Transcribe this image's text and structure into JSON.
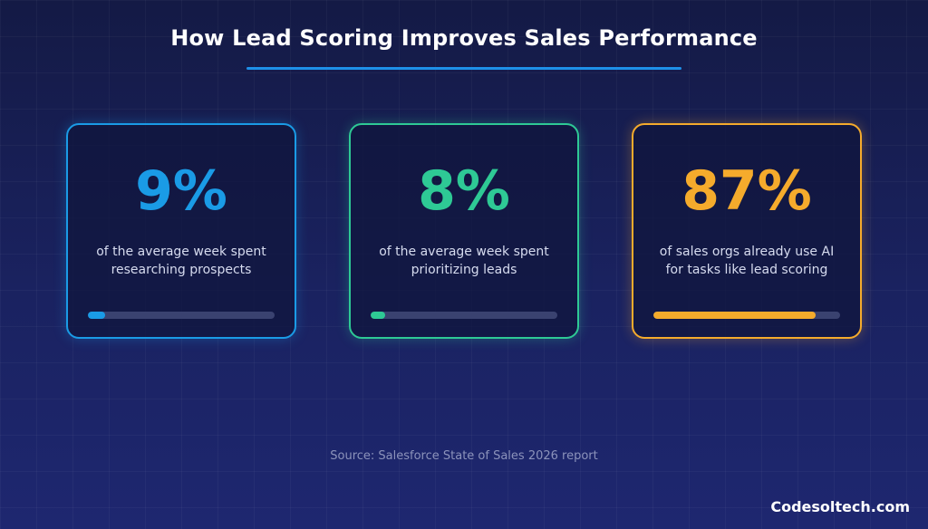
{
  "title": "How Lead Scoring Improves Sales Performance",
  "accent_color": "#1e90e8",
  "chart_data": {
    "type": "bar",
    "title": "How Lead Scoring Improves Sales Performance",
    "unit": "%",
    "ylim": [
      0,
      100
    ],
    "stats": [
      {
        "value": 9,
        "label": "9%",
        "description_lines": [
          "of the average week spent",
          "researching prospects"
        ],
        "color": "#1a9be6"
      },
      {
        "value": 8,
        "label": "8%",
        "description_lines": [
          "of the average week spent",
          "prioritizing leads"
        ],
        "color": "#2ec995"
      },
      {
        "value": 87,
        "label": "87%",
        "description_lines": [
          "of sales orgs already use AI",
          "for tasks like lead scoring"
        ],
        "color": "#f5ab2c"
      }
    ]
  },
  "source": "Source: Salesforce State of Sales 2026 report",
  "brand": "Codesoltech.com"
}
